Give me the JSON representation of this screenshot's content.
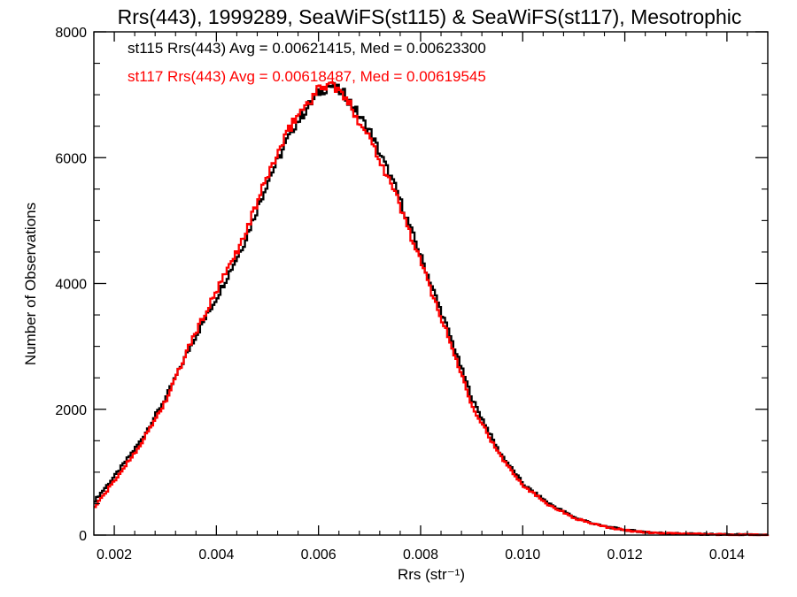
{
  "chart_data": {
    "type": "line",
    "step": true,
    "title": "Rrs(443), 1999289, SeaWiFS(st115) & SeaWiFS(st117), Mesotrophic",
    "xlabel": "Rrs (str⁻¹)",
    "ylabel": "Number of Observations",
    "xlim": [
      0.0016,
      0.0148
    ],
    "ylim": [
      0,
      8000
    ],
    "xticks": [
      "0.002",
      "0.004",
      "0.006",
      "0.008",
      "0.010",
      "0.012",
      "0.014"
    ],
    "yticks": [
      "0",
      "2000",
      "4000",
      "6000",
      "8000"
    ],
    "grid": false,
    "legend_position": "top-left",
    "annotations": [
      {
        "text": "st115 Rrs(443) Avg = 0.00621415, Med = 0.00623300",
        "color": "#000000"
      },
      {
        "text": "st117 Rrs(443) Avg = 0.00618487, Med = 0.00619545",
        "color": "#ff0000"
      }
    ],
    "series": [
      {
        "color": "#000000",
        "x": [
          0.0016,
          0.002,
          0.0025,
          0.003,
          0.0035,
          0.004,
          0.0045,
          0.005,
          0.0055,
          0.006,
          0.0062,
          0.0065,
          0.007,
          0.0075,
          0.008,
          0.0085,
          0.009,
          0.0095,
          0.01,
          0.0105,
          0.011,
          0.0115,
          0.012,
          0.0125,
          0.013,
          0.0135,
          0.014,
          0.0148
        ],
        "y": [
          550,
          950,
          1500,
          2200,
          3050,
          3800,
          4600,
          5650,
          6500,
          7050,
          7150,
          7000,
          6400,
          5500,
          4400,
          3300,
          2150,
          1350,
          800,
          500,
          280,
          150,
          80,
          40,
          25,
          15,
          8,
          0
        ]
      },
      {
        "color": "#ff0000",
        "x": [
          0.0016,
          0.002,
          0.0025,
          0.003,
          0.0035,
          0.004,
          0.0045,
          0.005,
          0.0055,
          0.006,
          0.0062,
          0.0065,
          0.007,
          0.0075,
          0.008,
          0.0085,
          0.009,
          0.0095,
          0.01,
          0.0105,
          0.011,
          0.0115,
          0.012,
          0.0125,
          0.013,
          0.0135,
          0.014,
          0.0148
        ],
        "y": [
          450,
          880,
          1450,
          2150,
          3100,
          3900,
          4700,
          5750,
          6600,
          7100,
          7200,
          6950,
          6300,
          5400,
          4300,
          3200,
          2050,
          1300,
          780,
          480,
          270,
          145,
          75,
          38,
          22,
          14,
          7,
          0
        ]
      }
    ]
  }
}
